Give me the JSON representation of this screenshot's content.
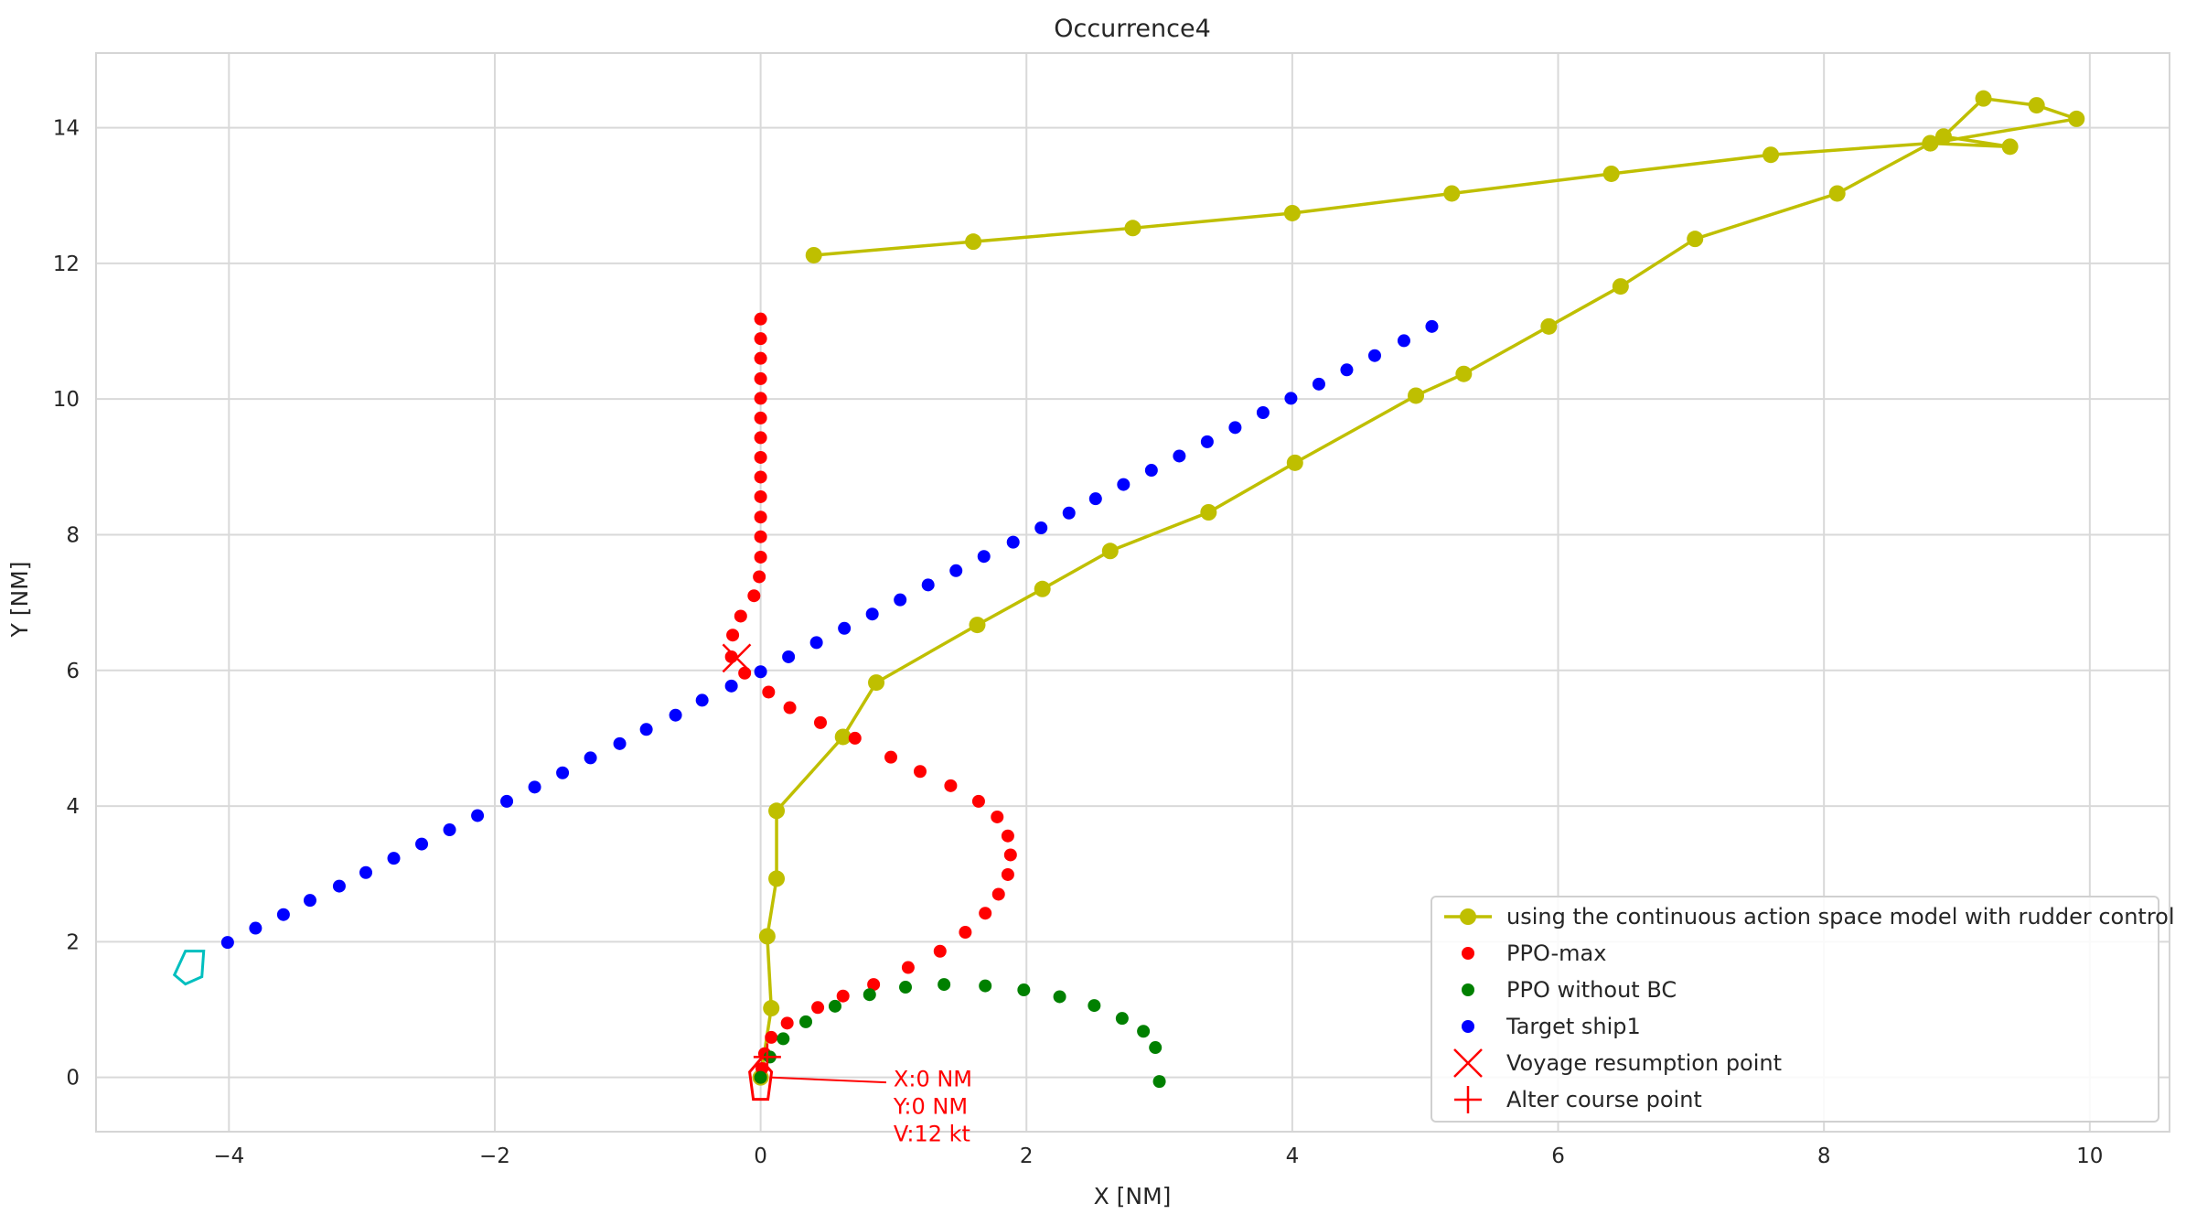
{
  "chart_data": {
    "type": "scatter",
    "title": "Occurrence4",
    "xlabel": "X [NM]",
    "ylabel": "Y [NM]",
    "xlim": [
      -5.0,
      10.6
    ],
    "ylim": [
      -0.8,
      15.1
    ],
    "xticks": [
      -4,
      -2,
      0,
      2,
      4,
      6,
      8,
      10
    ],
    "xtick_labels": [
      "−4",
      "−2",
      "0",
      "2",
      "4",
      "6",
      "8",
      "10"
    ],
    "yticks": [
      0,
      2,
      4,
      6,
      8,
      10,
      12,
      14
    ],
    "ytick_labels": [
      "0",
      "2",
      "4",
      "6",
      "8",
      "10",
      "12",
      "14"
    ],
    "grid": true,
    "legend_position": "lower-right",
    "series": [
      {
        "name": "using the continuous action space model with rudder control",
        "style": "line-marker",
        "color": "#bfbf00",
        "x": [
          0.0,
          0.08,
          0.05,
          0.12,
          0.12,
          0.62,
          0.87,
          1.63,
          2.12,
          2.63,
          3.37,
          4.02,
          4.93,
          5.29,
          5.93,
          6.47,
          7.03,
          8.1,
          8.8,
          9.9,
          9.6,
          9.2,
          8.9,
          9.4,
          8.8,
          7.6,
          6.4,
          5.2,
          4.0,
          2.8,
          1.6,
          0.4
        ],
        "y": [
          0.0,
          1.02,
          2.08,
          2.93,
          3.93,
          5.02,
          5.82,
          6.67,
          7.2,
          7.76,
          8.33,
          9.06,
          10.05,
          10.37,
          11.07,
          11.66,
          12.36,
          13.03,
          13.77,
          14.13,
          14.33,
          14.43,
          13.87,
          13.72,
          13.77,
          13.6,
          13.32,
          13.03,
          12.74,
          12.52,
          12.32,
          12.12
        ]
      },
      {
        "name": "PPO-max",
        "style": "marker",
        "color": "#ff0000",
        "x": [
          0.0,
          0.01,
          0.03,
          0.08,
          0.2,
          0.43,
          0.62,
          0.85,
          1.11,
          1.35,
          1.54,
          1.69,
          1.79,
          1.86,
          1.88,
          1.86,
          1.78,
          1.64,
          1.43,
          1.2,
          0.98,
          0.71,
          0.45,
          0.22,
          0.06,
          -0.12,
          -0.22,
          -0.21,
          -0.15,
          -0.05,
          -0.01,
          0.0,
          0.0,
          0.0,
          0.0,
          0.0,
          0.0,
          0.0,
          0.0,
          0.0,
          0.0,
          0.0,
          0.0,
          0.0
        ],
        "y": [
          0.0,
          0.13,
          0.35,
          0.59,
          0.8,
          1.03,
          1.2,
          1.37,
          1.62,
          1.86,
          2.14,
          2.42,
          2.7,
          2.99,
          3.28,
          3.56,
          3.84,
          4.07,
          4.3,
          4.51,
          4.72,
          5.0,
          5.23,
          5.45,
          5.68,
          5.96,
          6.2,
          6.52,
          6.8,
          7.1,
          7.38,
          7.67,
          7.97,
          8.26,
          8.56,
          8.85,
          9.14,
          9.43,
          9.72,
          10.01,
          10.3,
          10.6,
          10.89,
          11.18
        ]
      },
      {
        "name": "PPO without BC",
        "style": "marker",
        "color": "#008000",
        "x": [
          0.0,
          0.07,
          0.17,
          0.34,
          0.56,
          0.82,
          1.09,
          1.38,
          1.69,
          1.98,
          2.25,
          2.51,
          2.72,
          2.88,
          2.97,
          3.0
        ],
        "y": [
          0.0,
          0.3,
          0.57,
          0.82,
          1.05,
          1.22,
          1.33,
          1.37,
          1.35,
          1.29,
          1.19,
          1.06,
          0.87,
          0.68,
          0.44,
          -0.06
        ]
      },
      {
        "name": "Target ship1",
        "style": "marker",
        "color": "#0000ff",
        "x": [
          -4.01,
          -3.8,
          -3.59,
          -3.39,
          -3.17,
          -2.97,
          -2.76,
          -2.55,
          -2.34,
          -2.13,
          -1.91,
          -1.7,
          -1.49,
          -1.28,
          -1.06,
          -0.86,
          -0.64,
          -0.44,
          -0.22,
          0.0,
          0.21,
          0.42,
          0.63,
          0.84,
          1.05,
          1.26,
          1.47,
          1.68,
          1.9,
          2.11,
          2.32,
          2.52,
          2.73,
          2.94,
          3.15,
          3.36,
          3.57,
          3.78,
          3.99,
          4.2,
          4.41,
          4.62,
          4.84,
          5.05
        ],
        "y": [
          1.99,
          2.2,
          2.4,
          2.61,
          2.82,
          3.02,
          3.23,
          3.44,
          3.65,
          3.86,
          4.07,
          4.28,
          4.49,
          4.71,
          4.92,
          5.13,
          5.34,
          5.56,
          5.77,
          5.98,
          6.2,
          6.41,
          6.62,
          6.83,
          7.04,
          7.26,
          7.47,
          7.68,
          7.89,
          8.1,
          8.32,
          8.53,
          8.74,
          8.95,
          9.16,
          9.37,
          9.58,
          9.8,
          10.01,
          10.22,
          10.43,
          10.64,
          10.86,
          11.07
        ]
      },
      {
        "name": "Voyage resumption point",
        "style": "x-marker",
        "color": "#ff0000",
        "x": [
          -0.18
        ],
        "y": [
          6.18
        ]
      },
      {
        "name": "Alter course point",
        "style": "plus-marker",
        "color": "#ff0000",
        "x": [
          0.05
        ],
        "y": [
          0.3
        ]
      }
    ],
    "annotation": {
      "lines": [
        "X:0 NM",
        "Y:0 NM",
        "V:12 kt"
      ],
      "color": "#ff0000",
      "arrow_from": [
        1.0,
        -0.1
      ],
      "arrow_to": [
        0.04,
        0.0
      ]
    },
    "target_ship_outline_color": "#00bfbf",
    "own_ship_outline_color": "#ff0000"
  }
}
